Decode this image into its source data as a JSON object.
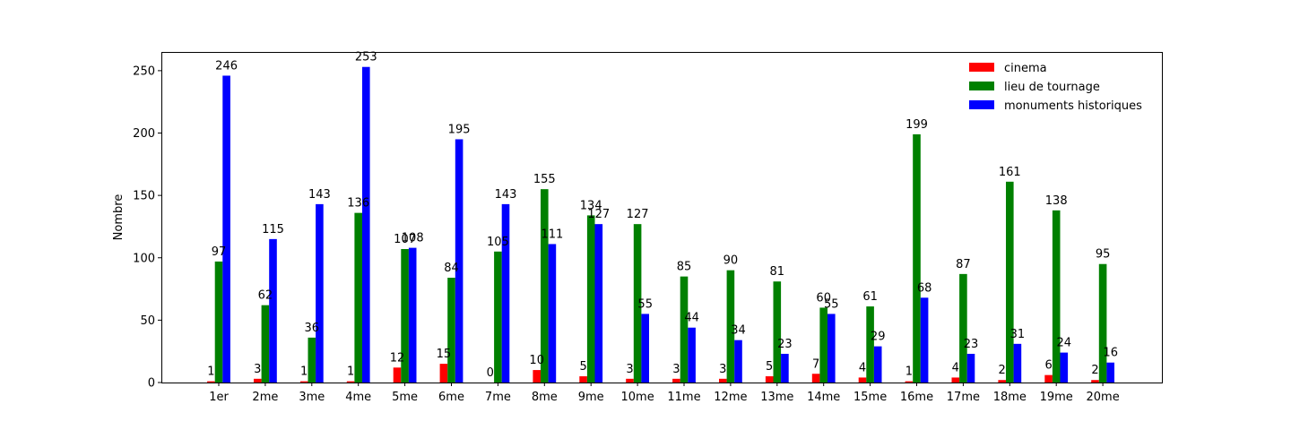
{
  "chart_data": {
    "type": "bar",
    "title": "",
    "xlabel": "",
    "ylabel": "Nombre",
    "ylim": [
      0,
      265
    ],
    "yticks": [
      0,
      50,
      100,
      150,
      200,
      250
    ],
    "grid": false,
    "legend_position": "top-right",
    "categories": [
      "1er",
      "2me",
      "3me",
      "4me",
      "5me",
      "6me",
      "7me",
      "8me",
      "9me",
      "10me",
      "11me",
      "12me",
      "13me",
      "14me",
      "15me",
      "16me",
      "17me",
      "18me",
      "19me",
      "20me"
    ],
    "series": [
      {
        "name": "cinema",
        "color": "#ff0000",
        "values": [
          1,
          3,
          1,
          1,
          12,
          15,
          0,
          10,
          5,
          3,
          3,
          3,
          5,
          7,
          4,
          1,
          4,
          2,
          6,
          2
        ]
      },
      {
        "name": "lieu de tournage",
        "color": "#008000",
        "values": [
          97,
          62,
          36,
          136,
          107,
          84,
          105,
          155,
          134,
          127,
          85,
          90,
          81,
          60,
          61,
          199,
          87,
          161,
          138,
          95
        ]
      },
      {
        "name": "monuments historiques",
        "color": "#0000ff",
        "values": [
          246,
          115,
          143,
          253,
          108,
          195,
          143,
          111,
          127,
          55,
          44,
          34,
          23,
          55,
          29,
          68,
          23,
          31,
          24,
          16
        ]
      }
    ]
  }
}
